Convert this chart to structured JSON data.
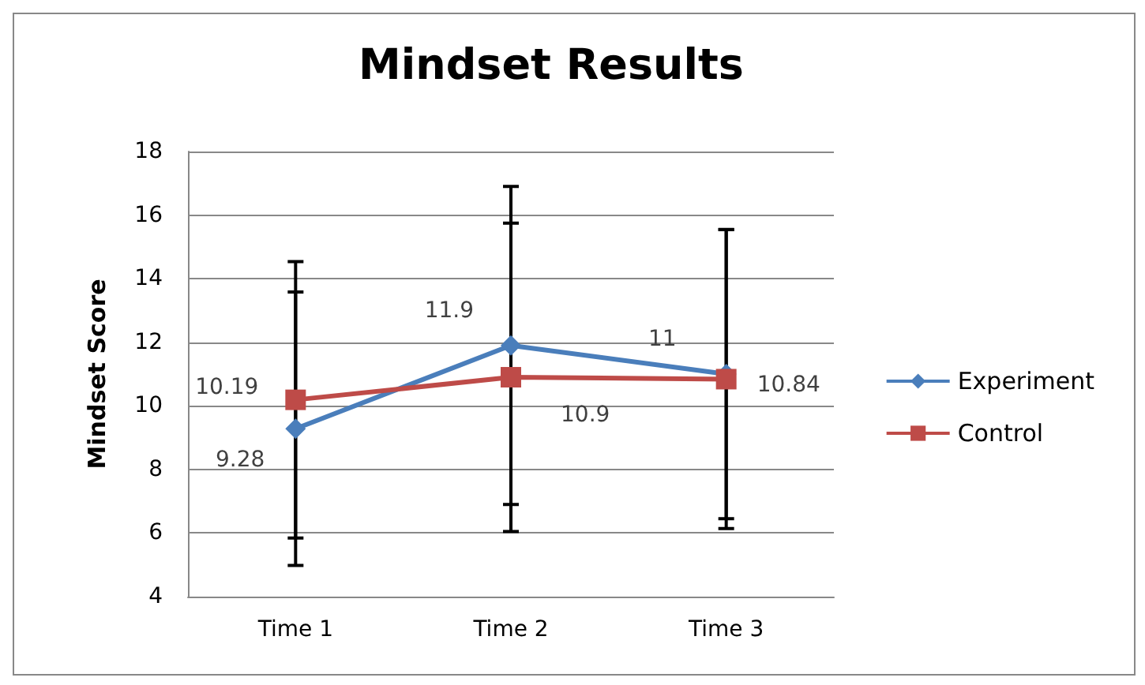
{
  "chart_data": {
    "type": "line",
    "title": "Mindset Results",
    "ylabel": "Mindset Score",
    "categories": [
      "Time 1",
      "Time 2",
      "Time 3"
    ],
    "series": [
      {
        "name": "Experiment",
        "color": "#4a7ebb",
        "marker": "diamond",
        "values": [
          9.28,
          11.9,
          11
        ],
        "errors": [
          4.3,
          5.0,
          4.55
        ]
      },
      {
        "name": "Control",
        "color": "#be4b48",
        "marker": "square",
        "values": [
          10.19,
          10.9,
          10.84
        ],
        "errors": [
          4.35,
          4.85,
          4.7
        ]
      }
    ],
    "ylim": [
      4,
      18
    ],
    "yticks": [
      4,
      6,
      8,
      10,
      12,
      14,
      16,
      18
    ],
    "grid": "y",
    "legend": "right",
    "data_labels": true
  }
}
